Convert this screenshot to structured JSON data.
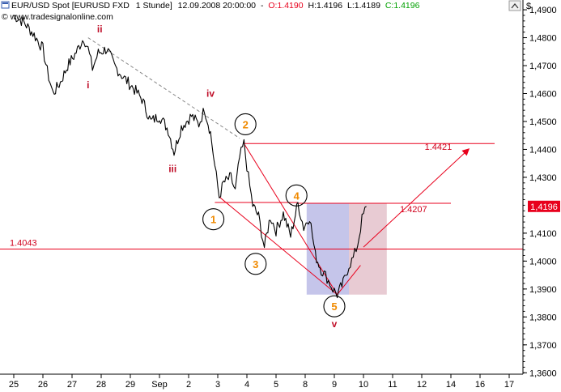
{
  "header": {
    "symbol": "EUR/USD Spot [EURUSD FXD",
    "interval": "1 Stunde]",
    "datetime": "12.09.2008 20:00:00",
    "sep": "-",
    "open": "O:1.4190",
    "high": "H:1.4196",
    "low": "L:1.4189",
    "close": "C:1.4196"
  },
  "watermark": "© www.tradesignalonline.com",
  "currency_symbol": "$",
  "colors": {
    "price": "#000000",
    "level_line": "#e8001c",
    "wave_red": "#c0102a",
    "wave_orange": "#f08a00",
    "trend_dashed": "#888888",
    "open_value": "#e8001c",
    "close_value": "#00a000",
    "price_box_bg": "#e8001c",
    "blue_box": "#8c8cd6",
    "pink_box": "#d9a9b6"
  },
  "chart_data": {
    "type": "line",
    "title": "",
    "xlabel": "",
    "ylabel": "",
    "x_ticks": [
      "25",
      "26",
      "27",
      "28",
      "29",
      "Sep",
      "2",
      "3",
      "4",
      "5",
      "8",
      "9",
      "10",
      "11",
      "12",
      "14",
      "16",
      "17"
    ],
    "y_ticks": [
      "1,4900",
      "1,4800",
      "1,4700",
      "1,4600",
      "1,4500",
      "1,4400",
      "1,4300",
      "1,4100",
      "1,4000",
      "1,3900",
      "1,3800",
      "1,3700",
      "1,3600"
    ],
    "ylim": [
      1.3595,
      1.4935
    ],
    "last_price_label": "1,4196",
    "grid": false,
    "horizontal_levels": [
      {
        "value": 1.4043,
        "label": "1.4043"
      },
      {
        "value": 1.4421,
        "label": "1.4421"
      },
      {
        "value": 1.4207,
        "label": "1.4207"
      }
    ],
    "price_path": [
      {
        "x": 0.0,
        "y": 1.488
      },
      {
        "x": 0.35,
        "y": 1.4855
      },
      {
        "x": 0.7,
        "y": 1.481
      },
      {
        "x": 1.0,
        "y": 1.476
      },
      {
        "x": 1.15,
        "y": 1.468
      },
      {
        "x": 1.35,
        "y": 1.46
      },
      {
        "x": 1.6,
        "y": 1.464
      },
      {
        "x": 1.85,
        "y": 1.47
      },
      {
        "x": 2.1,
        "y": 1.474
      },
      {
        "x": 2.4,
        "y": 1.48
      },
      {
        "x": 2.55,
        "y": 1.476
      },
      {
        "x": 2.7,
        "y": 1.469
      },
      {
        "x": 2.9,
        "y": 1.4745
      },
      {
        "x": 3.2,
        "y": 1.476
      },
      {
        "x": 3.45,
        "y": 1.47
      },
      {
        "x": 3.75,
        "y": 1.466
      },
      {
        "x": 4.1,
        "y": 1.462
      },
      {
        "x": 4.4,
        "y": 1.458
      },
      {
        "x": 4.7,
        "y": 1.45
      },
      {
        "x": 5.0,
        "y": 1.452
      },
      {
        "x": 5.3,
        "y": 1.447
      },
      {
        "x": 5.5,
        "y": 1.439
      },
      {
        "x": 5.75,
        "y": 1.448
      },
      {
        "x": 6.1,
        "y": 1.452
      },
      {
        "x": 6.35,
        "y": 1.449
      },
      {
        "x": 6.55,
        "y": 1.4545
      },
      {
        "x": 6.75,
        "y": 1.446
      },
      {
        "x": 6.9,
        "y": 1.434
      },
      {
        "x": 7.05,
        "y": 1.423
      },
      {
        "x": 7.2,
        "y": 1.428
      },
      {
        "x": 7.45,
        "y": 1.43
      },
      {
        "x": 7.6,
        "y": 1.425
      },
      {
        "x": 7.75,
        "y": 1.437
      },
      {
        "x": 7.9,
        "y": 1.4421
      },
      {
        "x": 8.05,
        "y": 1.43
      },
      {
        "x": 8.2,
        "y": 1.42
      },
      {
        "x": 8.4,
        "y": 1.416
      },
      {
        "x": 8.6,
        "y": 1.405
      },
      {
        "x": 8.8,
        "y": 1.416
      },
      {
        "x": 9.0,
        "y": 1.411
      },
      {
        "x": 9.25,
        "y": 1.417
      },
      {
        "x": 9.5,
        "y": 1.409
      },
      {
        "x": 9.75,
        "y": 1.4207
      },
      {
        "x": 9.95,
        "y": 1.412
      },
      {
        "x": 10.15,
        "y": 1.416
      },
      {
        "x": 10.35,
        "y": 1.402
      },
      {
        "x": 10.55,
        "y": 1.397
      },
      {
        "x": 10.75,
        "y": 1.394
      },
      {
        "x": 10.95,
        "y": 1.39
      },
      {
        "x": 11.1,
        "y": 1.388
      },
      {
        "x": 11.3,
        "y": 1.392
      },
      {
        "x": 11.5,
        "y": 1.3985
      },
      {
        "x": 11.65,
        "y": 1.401
      },
      {
        "x": 11.8,
        "y": 1.406
      },
      {
        "x": 11.95,
        "y": 1.415
      },
      {
        "x": 12.1,
        "y": 1.4196
      }
    ],
    "dashed_trendline": [
      {
        "x": 2.55,
        "y": 1.48
      },
      {
        "x": 7.75,
        "y": 1.444
      }
    ],
    "channel_lines": [
      [
        {
          "x": 7.9,
          "y": 1.4421
        },
        {
          "x": 11.1,
          "y": 1.388
        }
      ],
      [
        {
          "x": 7.05,
          "y": 1.423
        },
        {
          "x": 11.1,
          "y": 1.388
        }
      ],
      [
        {
          "x": 11.1,
          "y": 1.388
        },
        {
          "x": 11.9,
          "y": 1.3985
        }
      ]
    ],
    "projection_arrow": [
      {
        "x": 12.0,
        "y": 1.405
      },
      {
        "x": 15.6,
        "y": 1.44
      }
    ],
    "boxes": [
      {
        "x0": 10.05,
        "x1": 11.5,
        "y0": 1.388,
        "y1": 1.4207,
        "color": "blue"
      },
      {
        "x0": 11.5,
        "x1": 12.8,
        "y0": 1.388,
        "y1": 1.4207,
        "color": "pink"
      }
    ],
    "wave_labels": [
      {
        "text": "i",
        "x": 2.55,
        "y": 1.463,
        "style": "red",
        "circle": false
      },
      {
        "text": "ii",
        "x": 2.95,
        "y": 1.483,
        "style": "red",
        "circle": false
      },
      {
        "text": "iii",
        "x": 5.45,
        "y": 1.433,
        "style": "red",
        "circle": false
      },
      {
        "text": "iv",
        "x": 6.75,
        "y": 1.46,
        "style": "red",
        "circle": false
      },
      {
        "text": "v",
        "x": 11.0,
        "y": 1.3775,
        "style": "red",
        "circle": false
      },
      {
        "text": "1",
        "x": 6.85,
        "y": 1.415,
        "style": "orange",
        "circle": true
      },
      {
        "text": "2",
        "x": 7.95,
        "y": 1.449,
        "style": "orange",
        "circle": true
      },
      {
        "text": "3",
        "x": 8.3,
        "y": 1.399,
        "style": "orange",
        "circle": true
      },
      {
        "text": "4",
        "x": 9.7,
        "y": 1.4235,
        "style": "orange",
        "circle": true
      },
      {
        "text": "5",
        "x": 11.0,
        "y": 1.3838,
        "style": "orange",
        "circle": true
      }
    ]
  }
}
